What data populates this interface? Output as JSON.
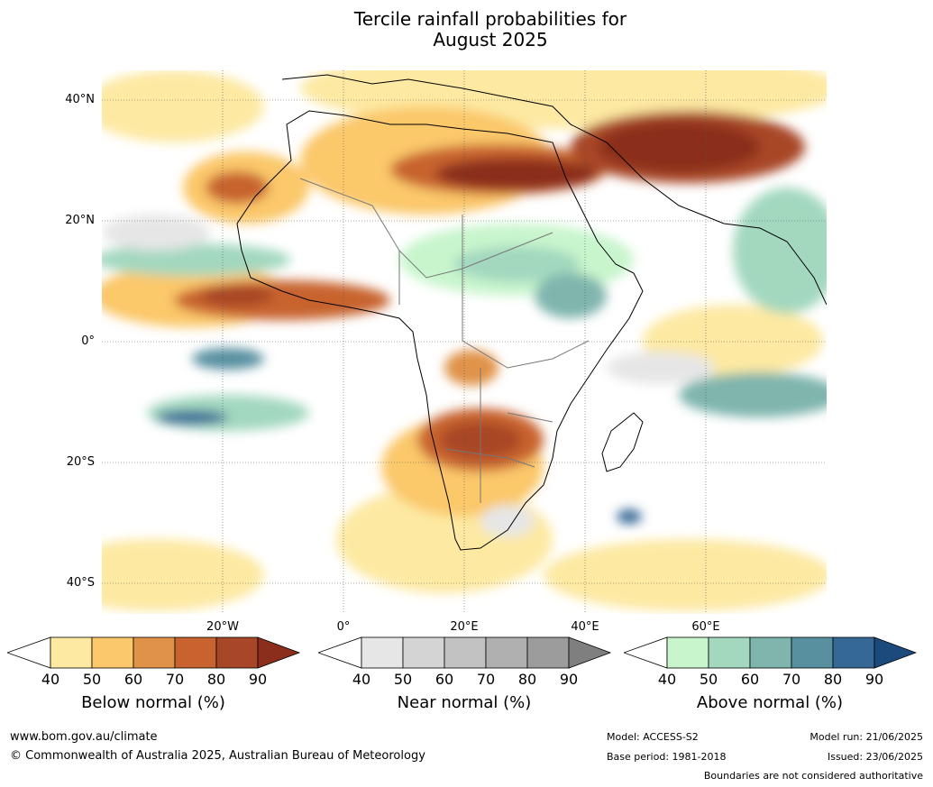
{
  "title_line1": "Tercile rainfall probabilities for",
  "title_line2": "August 2025",
  "lat_labels": [
    "40°N",
    "20°N",
    "0°",
    "20°S",
    "40°S"
  ],
  "lon_labels": [
    "20°W",
    "0°",
    "20°E",
    "40°E",
    "60°E"
  ],
  "colorbars": [
    {
      "name": "Below normal (%)",
      "ticks": [
        "40",
        "50",
        "60",
        "70",
        "80",
        "90"
      ],
      "colors": [
        "#ffffff",
        "#fde9a2",
        "#fbc86b",
        "#e09348",
        "#c8632f",
        "#a84727",
        "#8b2e1b"
      ]
    },
    {
      "name": "Near normal (%)",
      "ticks": [
        "40",
        "50",
        "60",
        "70",
        "80",
        "90"
      ],
      "colors": [
        "#ffffff",
        "#e6e6e6",
        "#d4d4d4",
        "#c2c2c2",
        "#b0b0b0",
        "#9c9c9c",
        "#7f7f7f"
      ]
    },
    {
      "name": "Above normal (%)",
      "ticks": [
        "40",
        "50",
        "60",
        "70",
        "80",
        "90"
      ],
      "colors": [
        "#ffffff",
        "#c8f5cc",
        "#a3d8bf",
        "#7fb5ad",
        "#5890a0",
        "#356895",
        "#1d4a7d"
      ]
    }
  ],
  "footer": {
    "url": "www.bom.gov.au/climate",
    "copyright": "© Commonwealth of Australia 2025, Australian Bureau of Meteorology",
    "model": "Model: ACCESS-S2",
    "base_period": "Base period: 1981-2018",
    "model_run": "Model run: 21/06/2025",
    "issued": "Issued: 23/06/2025",
    "disclaimer": "Boundaries are not considered authoritative"
  }
}
